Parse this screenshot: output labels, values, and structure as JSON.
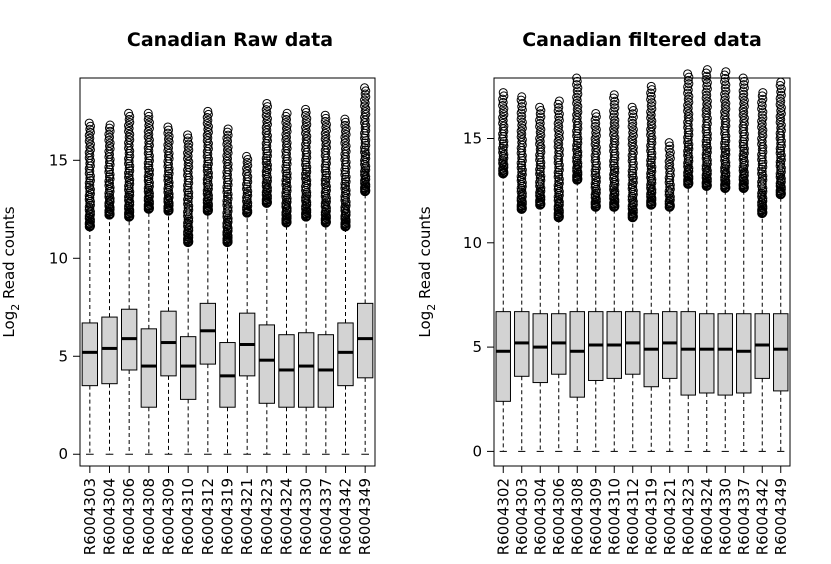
{
  "colors": {
    "box_fill": "#d3d3d3",
    "stroke": "#000000",
    "background": "#ffffff"
  },
  "chart_data": [
    {
      "type": "boxplot",
      "title": "Canadian Raw data",
      "ylabel": "Log2 Read counts",
      "ylabel_base": "Log",
      "ylabel_sub": "2",
      "ylabel_rest": " Read counts",
      "xlabel": "",
      "ylim": [
        -0.6,
        19.2
      ],
      "yticks": [
        0,
        5,
        10,
        15
      ],
      "grid": false,
      "categories": [
        "R6004303",
        "R6004304",
        "R6004306",
        "R6004308",
        "R6004309",
        "R6004310",
        "R6004312",
        "R6004319",
        "R6004321",
        "R6004323",
        "R6004324",
        "R6004330",
        "R6004337",
        "R6004342",
        "R6004349"
      ],
      "boxes": [
        {
          "min": 0,
          "q1": 3.5,
          "median": 5.2,
          "q3": 6.7,
          "whisker_hi": 11.6,
          "outlier_max": 16.9
        },
        {
          "min": 0,
          "q1": 3.6,
          "median": 5.4,
          "q3": 7.0,
          "whisker_hi": 12.2,
          "outlier_max": 16.8
        },
        {
          "min": 0,
          "q1": 4.3,
          "median": 5.9,
          "q3": 7.4,
          "whisker_hi": 12.1,
          "outlier_max": 17.4
        },
        {
          "min": 0,
          "q1": 2.4,
          "median": 4.5,
          "q3": 6.4,
          "whisker_hi": 12.5,
          "outlier_max": 17.4
        },
        {
          "min": 0,
          "q1": 4.0,
          "median": 5.7,
          "q3": 7.3,
          "whisker_hi": 12.4,
          "outlier_max": 16.7
        },
        {
          "min": 0,
          "q1": 2.8,
          "median": 4.5,
          "q3": 6.0,
          "whisker_hi": 10.8,
          "outlier_max": 16.3
        },
        {
          "min": 0,
          "q1": 4.6,
          "median": 6.3,
          "q3": 7.7,
          "whisker_hi": 12.4,
          "outlier_max": 17.5
        },
        {
          "min": 0,
          "q1": 2.4,
          "median": 4.0,
          "q3": 5.7,
          "whisker_hi": 10.8,
          "outlier_max": 16.6
        },
        {
          "min": 0,
          "q1": 4.0,
          "median": 5.6,
          "q3": 7.2,
          "whisker_hi": 12.3,
          "outlier_max": 15.2
        },
        {
          "min": 0,
          "q1": 2.6,
          "median": 4.8,
          "q3": 6.6,
          "whisker_hi": 12.8,
          "outlier_max": 17.9
        },
        {
          "min": 0,
          "q1": 2.4,
          "median": 4.3,
          "q3": 6.1,
          "whisker_hi": 11.8,
          "outlier_max": 17.4
        },
        {
          "min": 0,
          "q1": 2.4,
          "median": 4.5,
          "q3": 6.2,
          "whisker_hi": 12.1,
          "outlier_max": 17.6
        },
        {
          "min": 0,
          "q1": 2.4,
          "median": 4.3,
          "q3": 6.1,
          "whisker_hi": 11.8,
          "outlier_max": 17.3
        },
        {
          "min": 0,
          "q1": 3.5,
          "median": 5.2,
          "q3": 6.7,
          "whisker_hi": 11.6,
          "outlier_max": 17.1
        },
        {
          "min": 0,
          "q1": 3.9,
          "median": 5.9,
          "q3": 7.7,
          "whisker_hi": 13.4,
          "outlier_max": 18.7
        }
      ]
    },
    {
      "type": "boxplot",
      "title": "Canadian filtered data",
      "ylabel": "Log2 Read counts",
      "ylabel_base": "Log",
      "ylabel_sub": "2",
      "ylabel_rest": " Read counts",
      "xlabel": "",
      "ylim": [
        -0.7,
        17.9
      ],
      "yticks": [
        0,
        5,
        10,
        15
      ],
      "grid": false,
      "categories": [
        "R6004302",
        "R6004303",
        "R6004304",
        "R6004306",
        "R6004308",
        "R6004309",
        "R6004310",
        "R6004312",
        "R6004319",
        "R6004321",
        "R6004323",
        "R6004324",
        "R6004330",
        "R6004337",
        "R6004342",
        "R6004349"
      ],
      "boxes": [
        {
          "min": 0,
          "q1": 2.4,
          "median": 4.8,
          "q3": 6.7,
          "whisker_hi": 13.3,
          "outlier_max": 17.2
        },
        {
          "min": 0,
          "q1": 3.6,
          "median": 5.2,
          "q3": 6.7,
          "whisker_hi": 11.6,
          "outlier_max": 17.0
        },
        {
          "min": 0,
          "q1": 3.3,
          "median": 5.0,
          "q3": 6.6,
          "whisker_hi": 11.8,
          "outlier_max": 16.5
        },
        {
          "min": 0,
          "q1": 3.7,
          "median": 5.2,
          "q3": 6.6,
          "whisker_hi": 11.2,
          "outlier_max": 16.8
        },
        {
          "min": 0,
          "q1": 2.6,
          "median": 4.8,
          "q3": 6.7,
          "whisker_hi": 13.0,
          "outlier_max": 17.9
        },
        {
          "min": 0,
          "q1": 3.4,
          "median": 5.1,
          "q3": 6.7,
          "whisker_hi": 11.7,
          "outlier_max": 16.2
        },
        {
          "min": 0,
          "q1": 3.5,
          "median": 5.1,
          "q3": 6.7,
          "whisker_hi": 11.7,
          "outlier_max": 17.1
        },
        {
          "min": 0,
          "q1": 3.7,
          "median": 5.2,
          "q3": 6.7,
          "whisker_hi": 11.2,
          "outlier_max": 16.5
        },
        {
          "min": 0,
          "q1": 3.1,
          "median": 4.9,
          "q3": 6.6,
          "whisker_hi": 11.8,
          "outlier_max": 17.5
        },
        {
          "min": 0,
          "q1": 3.5,
          "median": 5.2,
          "q3": 6.7,
          "whisker_hi": 11.7,
          "outlier_max": 14.8
        },
        {
          "min": 0,
          "q1": 2.7,
          "median": 4.9,
          "q3": 6.7,
          "whisker_hi": 12.8,
          "outlier_max": 18.1
        },
        {
          "min": 0,
          "q1": 2.8,
          "median": 4.9,
          "q3": 6.6,
          "whisker_hi": 12.7,
          "outlier_max": 18.3
        },
        {
          "min": 0,
          "q1": 2.7,
          "median": 4.9,
          "q3": 6.6,
          "whisker_hi": 12.6,
          "outlier_max": 18.2
        },
        {
          "min": 0,
          "q1": 2.8,
          "median": 4.8,
          "q3": 6.6,
          "whisker_hi": 12.6,
          "outlier_max": 17.9
        },
        {
          "min": 0,
          "q1": 3.5,
          "median": 5.1,
          "q3": 6.6,
          "whisker_hi": 11.4,
          "outlier_max": 17.2
        },
        {
          "min": 0,
          "q1": 2.9,
          "median": 4.9,
          "q3": 6.6,
          "whisker_hi": 12.3,
          "outlier_max": 17.7
        }
      ]
    }
  ]
}
